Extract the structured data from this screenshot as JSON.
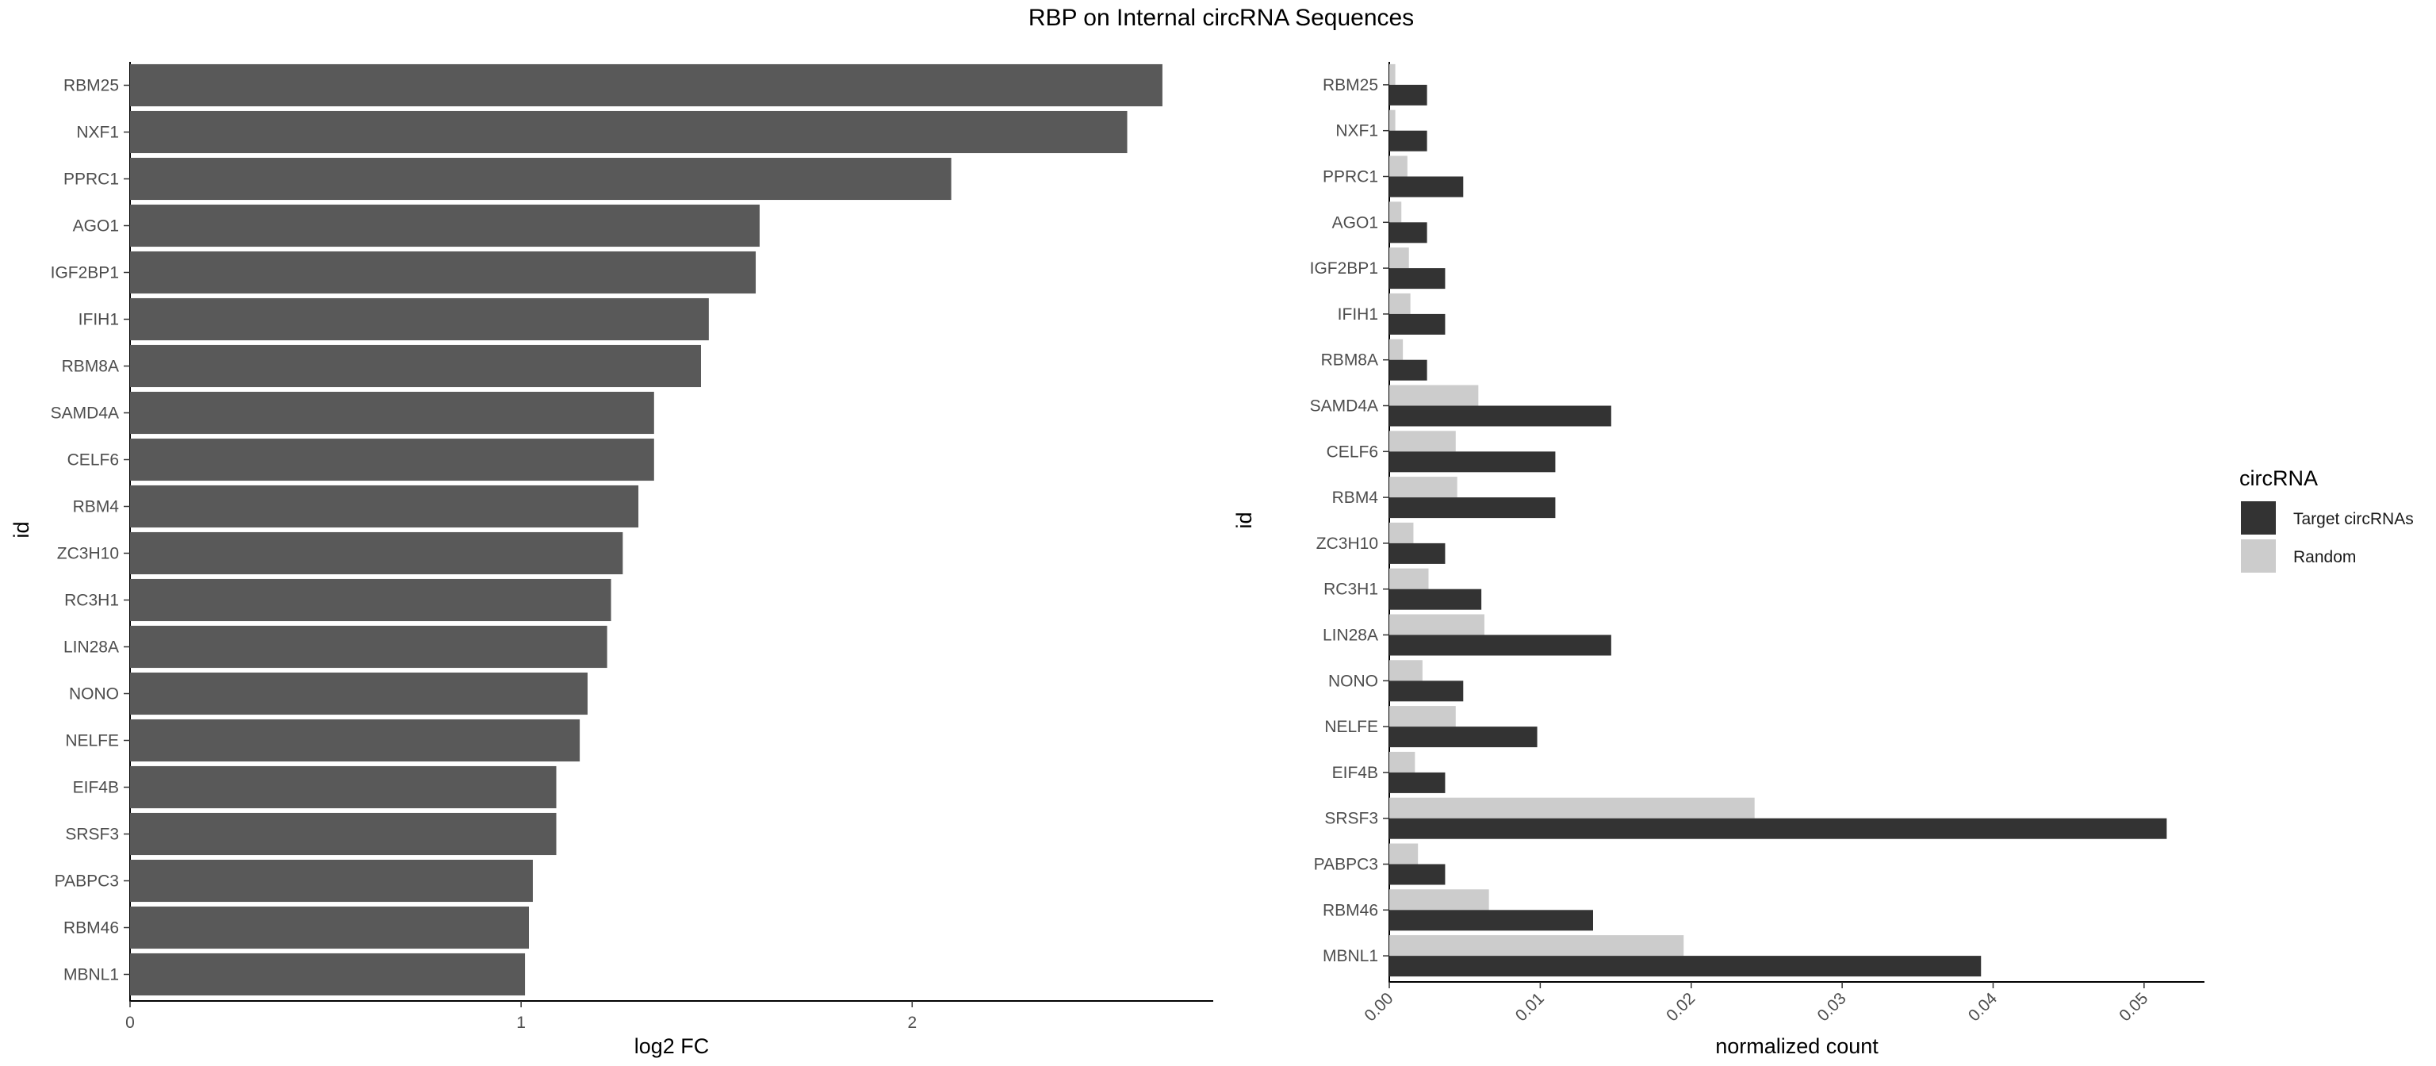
{
  "title": "RBP on Internal circRNA Sequences",
  "chart_data": [
    {
      "type": "bar",
      "orientation": "horizontal",
      "categories": [
        "RBM25",
        "NXF1",
        "PPRC1",
        "AGO1",
        "IGF2BP1",
        "IFIH1",
        "RBM8A",
        "SAMD4A",
        "CELF6",
        "RBM4",
        "ZC3H10",
        "RC3H1",
        "LIN28A",
        "NONO",
        "NELFE",
        "EIF4B",
        "SRSF3",
        "PABPC3",
        "RBM46",
        "MBNL1"
      ],
      "values": [
        2.64,
        2.55,
        2.1,
        1.61,
        1.6,
        1.48,
        1.46,
        1.34,
        1.34,
        1.3,
        1.26,
        1.23,
        1.22,
        1.17,
        1.15,
        1.09,
        1.09,
        1.03,
        1.02,
        1.01
      ],
      "xlabel": "log2 FC",
      "ylabel": "id",
      "xlim": [
        0,
        2.77
      ],
      "xticks": [
        "0",
        "1",
        "2"
      ],
      "bar_color": "#595959",
      "grid": false
    },
    {
      "type": "bar",
      "orientation": "horizontal",
      "grouped": true,
      "categories": [
        "RBM25",
        "NXF1",
        "PPRC1",
        "AGO1",
        "IGF2BP1",
        "IFIH1",
        "RBM8A",
        "SAMD4A",
        "CELF6",
        "RBM4",
        "ZC3H10",
        "RC3H1",
        "LIN28A",
        "NONO",
        "NELFE",
        "EIF4B",
        "SRSF3",
        "PABPC3",
        "RBM46",
        "MBNL1"
      ],
      "series": [
        {
          "name": "Target circRNAs",
          "color": "#333333",
          "values": [
            0.0025,
            0.0025,
            0.0049,
            0.0025,
            0.0037,
            0.0037,
            0.0025,
            0.0147,
            0.011,
            0.011,
            0.0037,
            0.0061,
            0.0147,
            0.0049,
            0.0098,
            0.0037,
            0.0515,
            0.0037,
            0.0135,
            0.0392
          ]
        },
        {
          "name": "Random",
          "color": "#cccccc",
          "values": [
            0.0004,
            0.0004,
            0.0012,
            0.0008,
            0.0013,
            0.0014,
            0.0009,
            0.0059,
            0.0044,
            0.0045,
            0.0016,
            0.0026,
            0.0063,
            0.0022,
            0.0044,
            0.0017,
            0.0242,
            0.0019,
            0.0066,
            0.0195
          ]
        }
      ],
      "xlabel": "normalized count",
      "ylabel": "id",
      "xlim": [
        0,
        0.054
      ],
      "xticks": [
        "0.00",
        "0.01",
        "0.02",
        "0.03",
        "0.04",
        "0.05"
      ],
      "legend": {
        "title": "circRNA",
        "position": "right",
        "entries": [
          "Target circRNAs",
          "Random"
        ]
      },
      "grid": false
    }
  ]
}
